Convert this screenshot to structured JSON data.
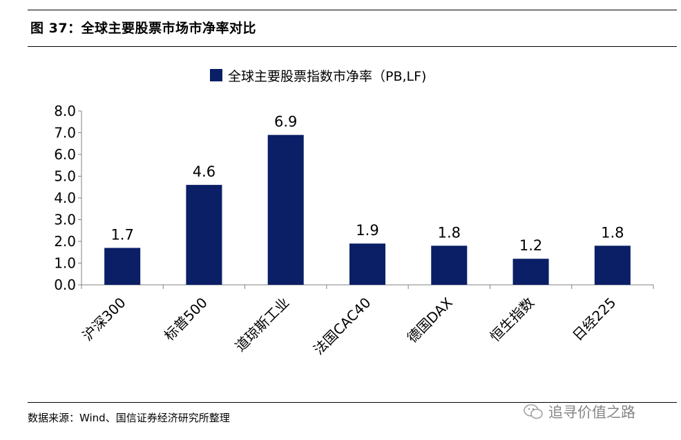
{
  "figure": {
    "title": "图 37：全球主要股票市场市净率对比",
    "source": "数据来源：Wind、国信证券经济研究所整理",
    "watermark": "追寻价值之路"
  },
  "colors": {
    "bar": "#0b1f66",
    "axis": "#808080",
    "text": "#000000"
  },
  "chart_data": {
    "type": "bar",
    "title": "",
    "categories": [
      "沪深300",
      "标普500",
      "道琼斯工业",
      "法国CAC40",
      "德国DAX",
      "恒生指数",
      "日经225"
    ],
    "series": [
      {
        "name": "全球主要股票指数市净率（PB,LF)",
        "values": [
          1.7,
          4.6,
          6.9,
          1.9,
          1.8,
          1.2,
          1.8
        ]
      }
    ],
    "data_labels": [
      "1.7",
      "4.6",
      "6.9",
      "1.9",
      "1.8",
      "1.2",
      "1.8"
    ],
    "y_ticks": [
      "0.0",
      "1.0",
      "2.0",
      "3.0",
      "4.0",
      "5.0",
      "6.0",
      "7.0",
      "8.0"
    ],
    "ylim": [
      0,
      8
    ],
    "xlabel": "",
    "ylabel": "",
    "grid": false,
    "legend": "top-center",
    "x_tick_rotation_deg": -45
  }
}
